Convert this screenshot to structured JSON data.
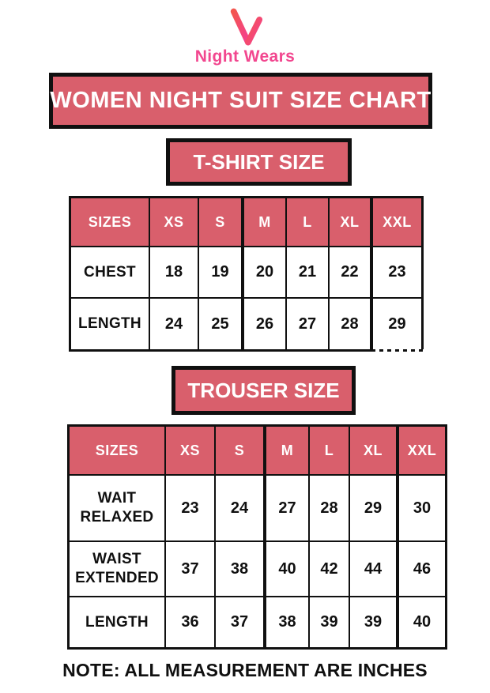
{
  "logo": {
    "brand": "Night Wears",
    "icon": "nw-monogram-icon"
  },
  "banners": {
    "main": "WOMEN NIGHT SUIT SIZE CHART",
    "tshirt": "T-SHIRT SIZE",
    "trouser": "TROUSER SIZE"
  },
  "tshirt_table": {
    "header": [
      "SIZES",
      "XS",
      "S",
      "M",
      "L",
      "XL",
      "XXL"
    ],
    "rows": [
      {
        "label": "CHEST",
        "values": [
          "18",
          "19",
          "20",
          "21",
          "22",
          "23"
        ]
      },
      {
        "label": "LENGTH",
        "values": [
          "24",
          "25",
          "26",
          "27",
          "28",
          "29"
        ]
      }
    ]
  },
  "trouser_table": {
    "header": [
      "SIZES",
      "XS",
      "S",
      "M",
      "L",
      "XL",
      "XXL"
    ],
    "rows": [
      {
        "label": "WAIT RELAXED",
        "values": [
          "23",
          "24",
          "27",
          "28",
          "29",
          "30"
        ]
      },
      {
        "label": "WAIST EXTENDED",
        "values": [
          "37",
          "38",
          "40",
          "42",
          "44",
          "46"
        ]
      },
      {
        "label": "LENGTH",
        "values": [
          "36",
          "37",
          "38",
          "39",
          "39",
          "40"
        ]
      }
    ]
  },
  "note": "NOTE: ALL MEASUREMENT ARE INCHES",
  "colors": {
    "banner_pink": "#d95f6c",
    "border_black": "#101010",
    "brand_pink": "#f2478f",
    "logo_gradient_start": "#f3564f",
    "logo_gradient_end": "#f43e94",
    "cell_text": "#101010",
    "header_text": "#ffffff"
  },
  "chart_data": [
    {
      "type": "table",
      "title": "T-SHIRT SIZE",
      "columns": [
        "SIZES",
        "XS",
        "S",
        "M",
        "L",
        "XL",
        "XXL"
      ],
      "rows": [
        [
          "CHEST",
          18,
          19,
          20,
          21,
          22,
          23
        ],
        [
          "LENGTH",
          24,
          25,
          26,
          27,
          28,
          29
        ]
      ]
    },
    {
      "type": "table",
      "title": "TROUSER SIZE",
      "columns": [
        "SIZES",
        "XS",
        "S",
        "M",
        "L",
        "XL",
        "XXL"
      ],
      "rows": [
        [
          "WAIT RELAXED",
          23,
          24,
          27,
          28,
          29,
          30
        ],
        [
          "WAIST EXTENDED",
          37,
          38,
          40,
          42,
          44,
          46
        ],
        [
          "LENGTH",
          36,
          37,
          38,
          39,
          39,
          40
        ]
      ]
    }
  ]
}
